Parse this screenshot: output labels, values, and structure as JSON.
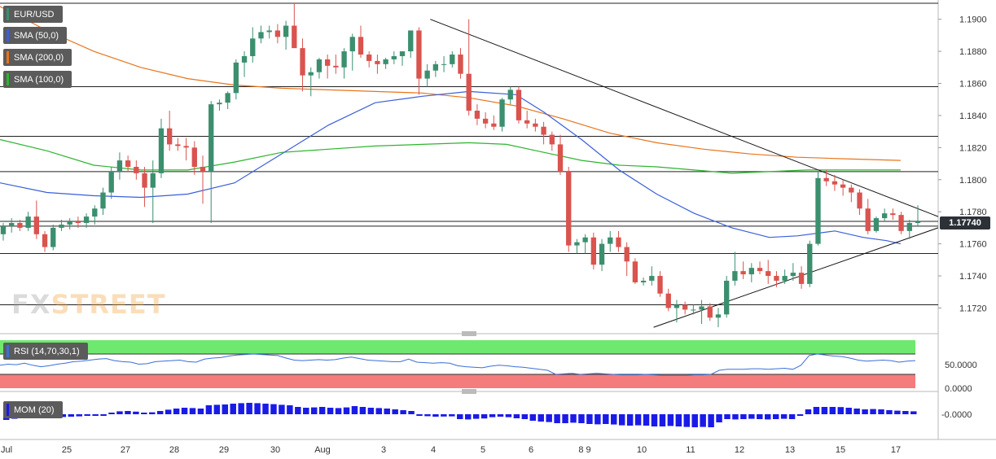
{
  "legend": {
    "symbol": "EUR/USD",
    "sma50": "SMA (50,0)",
    "sma200": "SMA (200,0)",
    "sma100": "SMA (100,0)",
    "rsi": "RSI (14,70,30,1)",
    "mom": "MOM (20)"
  },
  "logo": {
    "part1": "FX",
    "part2": "STREET"
  },
  "current_price": "1.17740",
  "colors": {
    "bull": "#3b8f6e",
    "bear": "#d9534f",
    "sma50": "#3a5fd9",
    "sma200": "#e8741c",
    "sma100": "#2db52d",
    "mom": "#1a1ae8",
    "rsi_line": "#3a6fd9",
    "rsi_high": "#6fe86f",
    "rsi_low": "#f47c7c"
  },
  "chart_data": {
    "type": "candlestick",
    "price_axis": {
      "ticks": [
        "1.1900",
        "1.1880",
        "1.1860",
        "1.1840",
        "1.1820",
        "1.1800",
        "1.1780",
        "1.1760",
        "1.1740",
        "1.1720"
      ],
      "range": [
        1.1704,
        1.1912
      ]
    },
    "x_labels": [
      "Jul",
      "25",
      "27",
      "28",
      "29",
      "30",
      "Aug",
      "3",
      "4",
      "5",
      "6",
      "8 9",
      "10",
      "11",
      "12",
      "13",
      "15",
      "17"
    ],
    "horizontal_levels": [
      1.191,
      1.1858,
      1.1827,
      1.1805,
      1.1774,
      1.1771,
      1.1754,
      1.1722
    ],
    "trendlines": [
      {
        "name": "resistance",
        "from": [
          0.4586,
          1.19
        ],
        "to": [
          1.0,
          1.1777
        ]
      },
      {
        "name": "support",
        "from": [
          0.6967,
          1.1708
        ],
        "to": [
          1.0,
          1.177
        ]
      }
    ],
    "candles": [
      [
        1.1766,
        1.1773,
        1.1762,
        1.1771
      ],
      [
        1.1771,
        1.1776,
        1.1767,
        1.1773
      ],
      [
        1.1773,
        1.1775,
        1.1768,
        1.177
      ],
      [
        1.177,
        1.178,
        1.1768,
        1.1777
      ],
      [
        1.1777,
        1.1787,
        1.1763,
        1.1766
      ],
      [
        1.1766,
        1.1768,
        1.1755,
        1.1758
      ],
      [
        1.1758,
        1.1772,
        1.1756,
        1.177
      ],
      [
        1.177,
        1.1775,
        1.1768,
        1.1772
      ],
      [
        1.1772,
        1.1776,
        1.1769,
        1.1774
      ],
      [
        1.1774,
        1.1777,
        1.177,
        1.1773
      ],
      [
        1.1773,
        1.1779,
        1.177,
        1.1777
      ],
      [
        1.1777,
        1.1784,
        1.1772,
        1.1782
      ],
      [
        1.1782,
        1.1795,
        1.1778,
        1.1792
      ],
      [
        1.1792,
        1.1808,
        1.1788,
        1.1805
      ],
      [
        1.1805,
        1.1817,
        1.18,
        1.1812
      ],
      [
        1.1812,
        1.1815,
        1.1805,
        1.1808
      ],
      [
        1.1808,
        1.1812,
        1.18,
        1.1804
      ],
      [
        1.1804,
        1.1808,
        1.1783,
        1.1795
      ],
      [
        1.1795,
        1.1812,
        1.1773,
        1.1804
      ],
      [
        1.1804,
        1.1838,
        1.1801,
        1.1832
      ],
      [
        1.1832,
        1.1843,
        1.1818,
        1.1822
      ],
      [
        1.1822,
        1.1826,
        1.1818,
        1.1821
      ],
      [
        1.1821,
        1.1826,
        1.1812,
        1.182
      ],
      [
        1.182,
        1.1824,
        1.1803,
        1.1808
      ],
      [
        1.1808,
        1.1815,
        1.1785,
        1.1805
      ],
      [
        1.1805,
        1.1849,
        1.1773,
        1.1847
      ],
      [
        1.1847,
        1.185,
        1.1843,
        1.1848
      ],
      [
        1.1848,
        1.1855,
        1.1844,
        1.1854
      ],
      [
        1.1854,
        1.1875,
        1.185,
        1.1873
      ],
      [
        1.1873,
        1.188,
        1.1864,
        1.1877
      ],
      [
        1.1877,
        1.1895,
        1.1873,
        1.1888
      ],
      [
        1.1888,
        1.1896,
        1.1885,
        1.1892
      ],
      [
        1.1892,
        1.1896,
        1.1888,
        1.1893
      ],
      [
        1.1893,
        1.1897,
        1.1885,
        1.1889
      ],
      [
        1.1889,
        1.1899,
        1.1881,
        1.1896
      ],
      [
        1.1896,
        1.191,
        1.1883,
        1.1882
      ],
      [
        1.1882,
        1.1888,
        1.1855,
        1.1865
      ],
      [
        1.1865,
        1.187,
        1.1852,
        1.1867
      ],
      [
        1.1867,
        1.1876,
        1.1863,
        1.1875
      ],
      [
        1.1875,
        1.1878,
        1.1863,
        1.1871
      ],
      [
        1.1871,
        1.1878,
        1.1866,
        1.187
      ],
      [
        1.187,
        1.1882,
        1.1863,
        1.188
      ],
      [
        1.188,
        1.1891,
        1.1868,
        1.1889
      ],
      [
        1.1889,
        1.1896,
        1.1876,
        1.1878
      ],
      [
        1.1878,
        1.188,
        1.187,
        1.1874
      ],
      [
        1.1874,
        1.1878,
        1.1866,
        1.1872
      ],
      [
        1.1872,
        1.1876,
        1.1869,
        1.1875
      ],
      [
        1.1875,
        1.188,
        1.1872,
        1.1877
      ],
      [
        1.1877,
        1.188,
        1.1871,
        1.188
      ],
      [
        1.188,
        1.1893,
        1.1876,
        1.1893
      ],
      [
        1.1893,
        1.1895,
        1.1853,
        1.1863
      ],
      [
        1.1863,
        1.1872,
        1.1858,
        1.1868
      ],
      [
        1.1868,
        1.1874,
        1.1864,
        1.1872
      ],
      [
        1.1872,
        1.1877,
        1.1867,
        1.1872
      ],
      [
        1.1872,
        1.188,
        1.187,
        1.1878
      ],
      [
        1.1878,
        1.1882,
        1.1863,
        1.1866
      ],
      [
        1.1866,
        1.19,
        1.184,
        1.1843
      ],
      [
        1.1843,
        1.1847,
        1.1834,
        1.1838
      ],
      [
        1.1838,
        1.1842,
        1.1832,
        1.1835
      ],
      [
        1.1835,
        1.184,
        1.1831,
        1.1833
      ],
      [
        1.1833,
        1.1851,
        1.183,
        1.185
      ],
      [
        1.185,
        1.1858,
        1.1847,
        1.1856
      ],
      [
        1.1856,
        1.1858,
        1.1835,
        1.1837
      ],
      [
        1.1837,
        1.1843,
        1.1832,
        1.1835
      ],
      [
        1.1835,
        1.1838,
        1.183,
        1.1833
      ],
      [
        1.1833,
        1.1836,
        1.1822,
        1.1828
      ],
      [
        1.1828,
        1.183,
        1.1818,
        1.1822
      ],
      [
        1.1822,
        1.1828,
        1.1803,
        1.1805
      ],
      [
        1.1805,
        1.1808,
        1.1755,
        1.1759
      ],
      [
        1.1759,
        1.1763,
        1.1754,
        1.1761
      ],
      [
        1.1761,
        1.1766,
        1.1754,
        1.1764
      ],
      [
        1.1764,
        1.1767,
        1.1744,
        1.1747
      ],
      [
        1.1747,
        1.1763,
        1.1743,
        1.176
      ],
      [
        1.176,
        1.1768,
        1.1755,
        1.1764
      ],
      [
        1.1764,
        1.1768,
        1.1755,
        1.1758
      ],
      [
        1.1758,
        1.1761,
        1.174,
        1.1749
      ],
      [
        1.1749,
        1.1751,
        1.1735,
        1.1736
      ],
      [
        1.1736,
        1.1739,
        1.1734,
        1.1737
      ],
      [
        1.1737,
        1.1746,
        1.1734,
        1.174
      ],
      [
        1.174,
        1.1743,
        1.1727,
        1.1729
      ],
      [
        1.1729,
        1.1732,
        1.1718,
        1.172
      ],
      [
        1.172,
        1.1725,
        1.1711,
        1.1722
      ],
      [
        1.1722,
        1.1724,
        1.1716,
        1.1719
      ],
      [
        1.1719,
        1.1722,
        1.1716,
        1.1719
      ],
      [
        1.1719,
        1.1725,
        1.171,
        1.1721
      ],
      [
        1.1721,
        1.1723,
        1.1712,
        1.1714
      ],
      [
        1.1714,
        1.172,
        1.1708,
        1.1716
      ],
      [
        1.1716,
        1.174,
        1.1714,
        1.1737
      ],
      [
        1.1737,
        1.1755,
        1.1734,
        1.1743
      ],
      [
        1.1743,
        1.1749,
        1.1738,
        1.1741
      ],
      [
        1.1741,
        1.1748,
        1.1736,
        1.1745
      ],
      [
        1.1745,
        1.1749,
        1.1741,
        1.1743
      ],
      [
        1.1743,
        1.175,
        1.1735,
        1.174
      ],
      [
        1.174,
        1.1743,
        1.1733,
        1.1737
      ],
      [
        1.1737,
        1.1744,
        1.1735,
        1.174
      ],
      [
        1.174,
        1.1748,
        1.1737,
        1.1742
      ],
      [
        1.1742,
        1.1746,
        1.1732,
        1.1735
      ],
      [
        1.1735,
        1.1762,
        1.1733,
        1.176
      ],
      [
        1.176,
        1.1805,
        1.1759,
        1.1801
      ],
      [
        1.1801,
        1.1806,
        1.1796,
        1.1799
      ],
      [
        1.1799,
        1.1803,
        1.1793,
        1.1797
      ],
      [
        1.1797,
        1.18,
        1.179,
        1.1795
      ],
      [
        1.1795,
        1.1797,
        1.1786,
        1.1792
      ],
      [
        1.1792,
        1.1794,
        1.1778,
        1.1782
      ],
      [
        1.1782,
        1.1788,
        1.1766,
        1.1768
      ],
      [
        1.1768,
        1.1777,
        1.1767,
        1.1776
      ],
      [
        1.1776,
        1.1782,
        1.1774,
        1.1779
      ],
      [
        1.1779,
        1.1782,
        1.1775,
        1.1778
      ],
      [
        1.1778,
        1.178,
        1.1766,
        1.1768
      ],
      [
        1.1768,
        1.1775,
        1.1763,
        1.1773
      ],
      [
        1.1773,
        1.1784,
        1.1771,
        1.1774
      ]
    ],
    "sma50": [
      [
        0,
        1.1798
      ],
      [
        0.05,
        1.1792
      ],
      [
        0.1,
        1.179
      ],
      [
        0.15,
        1.1789
      ],
      [
        0.2,
        1.1791
      ],
      [
        0.25,
        1.1798
      ],
      [
        0.3,
        1.1816
      ],
      [
        0.35,
        1.1834
      ],
      [
        0.4,
        1.1848
      ],
      [
        0.45,
        1.1852
      ],
      [
        0.5,
        1.1855
      ],
      [
        0.55,
        1.1853
      ],
      [
        0.58,
        1.1842
      ],
      [
        0.62,
        1.1825
      ],
      [
        0.66,
        1.1806
      ],
      [
        0.7,
        1.1791
      ],
      [
        0.74,
        1.1779
      ],
      [
        0.78,
        1.177
      ],
      [
        0.82,
        1.1764
      ],
      [
        0.85,
        1.1765
      ],
      [
        0.89,
        1.1768
      ],
      [
        0.92,
        1.1764
      ],
      [
        0.945,
        1.1762
      ],
      [
        0.96,
        1.176
      ]
    ],
    "sma200": [
      [
        0,
        1.1908
      ],
      [
        0.05,
        1.1893
      ],
      [
        0.1,
        1.188
      ],
      [
        0.15,
        1.187
      ],
      [
        0.2,
        1.1863
      ],
      [
        0.25,
        1.1859
      ],
      [
        0.3,
        1.1857
      ],
      [
        0.35,
        1.1856
      ],
      [
        0.4,
        1.1855
      ],
      [
        0.45,
        1.1854
      ],
      [
        0.5,
        1.1851
      ],
      [
        0.55,
        1.1846
      ],
      [
        0.6,
        1.1838
      ],
      [
        0.65,
        1.1829
      ],
      [
        0.7,
        1.1823
      ],
      [
        0.75,
        1.1819
      ],
      [
        0.8,
        1.1816
      ],
      [
        0.85,
        1.1814
      ],
      [
        0.9,
        1.1813
      ],
      [
        0.96,
        1.1812
      ]
    ],
    "sma100": [
      [
        0,
        1.1825
      ],
      [
        0.05,
        1.1818
      ],
      [
        0.1,
        1.1809
      ],
      [
        0.15,
        1.1806
      ],
      [
        0.2,
        1.1806
      ],
      [
        0.25,
        1.1811
      ],
      [
        0.3,
        1.1817
      ],
      [
        0.35,
        1.1819
      ],
      [
        0.4,
        1.1821
      ],
      [
        0.45,
        1.1822
      ],
      [
        0.5,
        1.1823
      ],
      [
        0.54,
        1.1822
      ],
      [
        0.58,
        1.1817
      ],
      [
        0.62,
        1.1812
      ],
      [
        0.66,
        1.1809
      ],
      [
        0.7,
        1.1808
      ],
      [
        0.74,
        1.1806
      ],
      [
        0.78,
        1.1804
      ],
      [
        0.82,
        1.1805
      ],
      [
        0.86,
        1.1806
      ],
      [
        0.9,
        1.1806
      ],
      [
        0.96,
        1.1806
      ]
    ],
    "rsi": {
      "axis_ticks": [
        "50.0000",
        "0.0000"
      ],
      "levels": [
        70,
        30
      ],
      "values": [
        48,
        50,
        49,
        52,
        48,
        45,
        47,
        50,
        52,
        55,
        56,
        58,
        60,
        61,
        57,
        55,
        54,
        50,
        51,
        55,
        56,
        57,
        58,
        55,
        54,
        60,
        62,
        63,
        66,
        68,
        69,
        70,
        69,
        68,
        67,
        62,
        58,
        57,
        58,
        59,
        58,
        59,
        62,
        64,
        61,
        58,
        57,
        56,
        55,
        55,
        60,
        54,
        53,
        52,
        53,
        52,
        47,
        45,
        44,
        43,
        46,
        48,
        47,
        45,
        44,
        42,
        40,
        38,
        30,
        31,
        32,
        30,
        31,
        32,
        31,
        30,
        29,
        29,
        29,
        30,
        29,
        28,
        28,
        28,
        28,
        29,
        29,
        30,
        38,
        40,
        40,
        40,
        41,
        41,
        40,
        41,
        42,
        40,
        48,
        67,
        70,
        68,
        66,
        65,
        62,
        58,
        56,
        57,
        58,
        57,
        54,
        56,
        57
      ]
    },
    "mom": {
      "axis_ticks": [
        "-0.0000"
      ],
      "values": [
        -0.0035,
        -0.0028,
        -0.0024,
        -0.0018,
        -0.002,
        -0.0022,
        -0.0019,
        -0.0017,
        -0.0015,
        -0.0013,
        -0.001,
        -0.0008,
        -0.0005,
        0.001,
        0.0018,
        0.002,
        0.0016,
        0.001,
        0.0012,
        0.002,
        0.0028,
        0.0035,
        0.004,
        0.0038,
        0.0035,
        0.0055,
        0.0058,
        0.006,
        0.0065,
        0.0068,
        0.007,
        0.0068,
        0.0065,
        0.0062,
        0.0058,
        0.0055,
        0.0045,
        0.004,
        0.0042,
        0.0045,
        0.004,
        0.0038,
        0.0042,
        0.005,
        0.0045,
        0.004,
        0.0038,
        0.0035,
        0.003,
        0.0025,
        0.002,
        -0.001,
        -0.0012,
        -0.0015,
        -0.0014,
        -0.0013,
        -0.003,
        -0.0032,
        -0.0028,
        -0.0026,
        -0.0018,
        -0.0015,
        -0.0018,
        -0.0025,
        -0.003,
        -0.004,
        -0.0045,
        -0.0048,
        -0.0055,
        -0.0055,
        -0.0052,
        -0.0055,
        -0.006,
        -0.0062,
        -0.006,
        -0.0063,
        -0.0068,
        -0.007,
        -0.0068,
        -0.007,
        -0.0075,
        -0.0075,
        -0.0072,
        -0.0075,
        -0.0078,
        -0.008,
        -0.0078,
        -0.008,
        -0.005,
        -0.003,
        -0.0032,
        -0.003,
        -0.0028,
        -0.003,
        -0.0032,
        -0.003,
        -0.0028,
        -0.003,
        -0.001,
        0.003,
        0.0045,
        0.0045,
        0.0045,
        0.0044,
        0.004,
        0.0035,
        0.003,
        0.0032,
        0.003,
        0.0025,
        0.0022,
        0.002,
        0.0018
      ]
    }
  }
}
